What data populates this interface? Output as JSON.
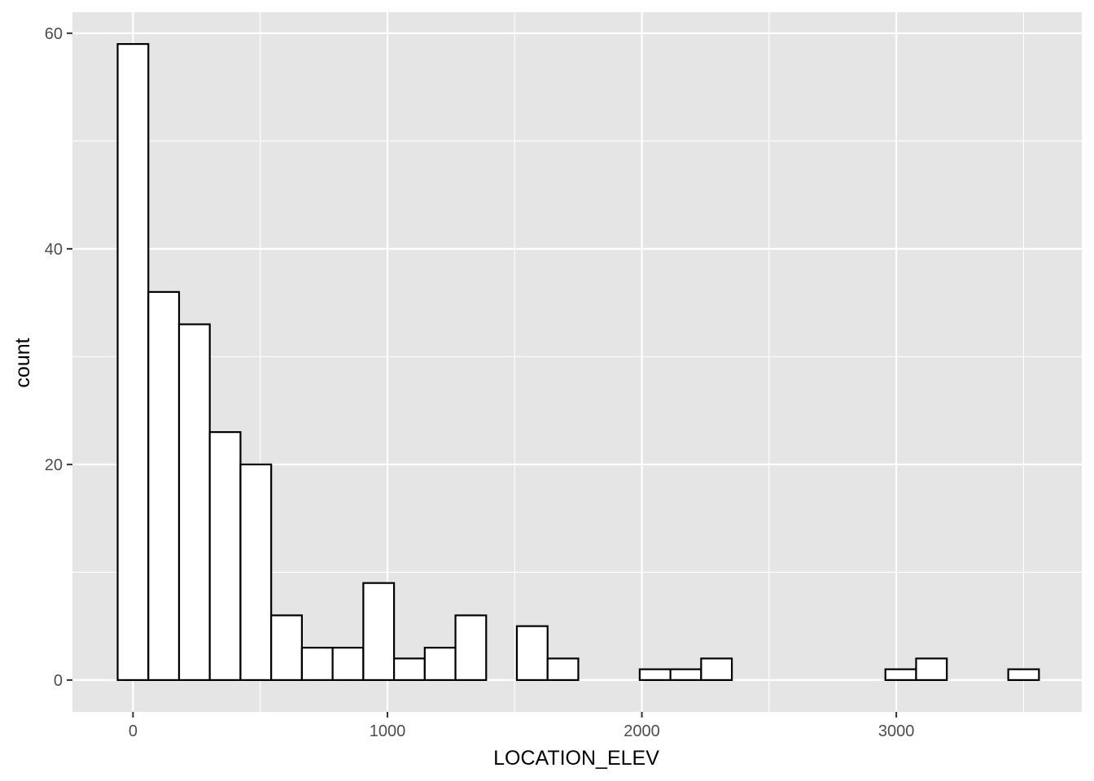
{
  "chart_data": {
    "type": "bar",
    "xlabel": "LOCATION_ELEV",
    "ylabel": "count",
    "xlim": [
      -238,
      3729
    ],
    "ylim": [
      -2.95,
      61.95
    ],
    "x_ticks": [
      0,
      1000,
      2000,
      3000
    ],
    "x_minor_ticks": [
      500,
      1500,
      2500,
      3500
    ],
    "y_ticks": [
      0,
      20,
      40,
      60
    ],
    "y_minor_ticks": [
      10,
      30,
      50
    ],
    "grid": true,
    "bin_width": 120.7,
    "bin_start": -60.35,
    "counts": [
      59,
      36,
      33,
      23,
      20,
      6,
      3,
      3,
      9,
      2,
      3,
      6,
      0,
      5,
      2,
      0,
      0,
      1,
      1,
      2,
      0,
      0,
      0,
      0,
      0,
      1,
      2,
      0,
      0,
      1
    ],
    "colors": {
      "panel": "#e5e5e5",
      "grid": "#ffffff",
      "bar_fill": "#ffffff",
      "bar_stroke": "#000000",
      "tick_label": "#4d4d4d",
      "tick_mark": "#333333"
    }
  }
}
